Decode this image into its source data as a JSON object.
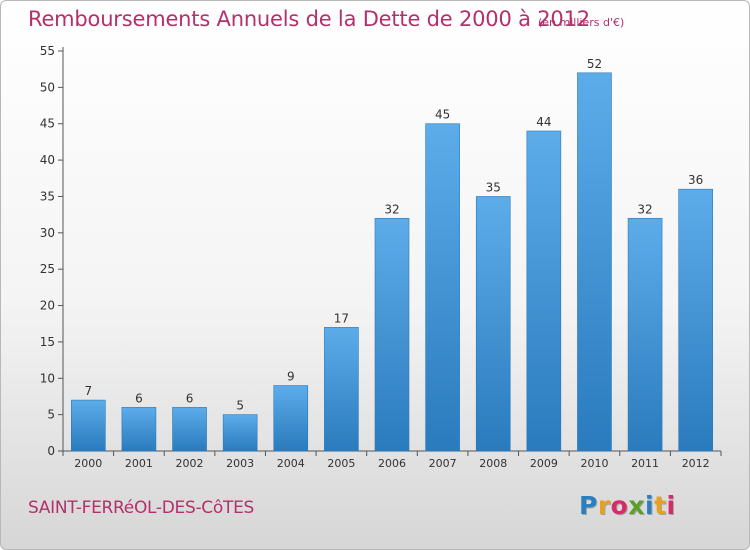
{
  "title": "Remboursements Annuels de la Dette de 2000 à 2012",
  "unit": "(en milliers d'€)",
  "place": "SAINT-FERRéOL-DES-CôTES",
  "logo": {
    "letters": [
      {
        "char": "P",
        "color": "#2a7fc0"
      },
      {
        "char": "r",
        "color": "#e8a020"
      },
      {
        "char": "o",
        "color": "#d62a6a"
      },
      {
        "char": "x",
        "color": "#5aa02c"
      },
      {
        "char": "i",
        "color": "#2a7fc0"
      },
      {
        "char": "t",
        "color": "#e8a020"
      },
      {
        "char": "i",
        "color": "#d62a6a"
      }
    ]
  },
  "colors": {
    "accent": "#b4306c",
    "bar_top": "#5dacea",
    "bar_bottom": "#2a7bbd"
  },
  "chart_data": {
    "type": "bar",
    "title": "Remboursements Annuels de la Dette de 2000 à 2012",
    "ylabel": "",
    "xlabel": "",
    "categories": [
      "2000",
      "2001",
      "2002",
      "2003",
      "2004",
      "2005",
      "2006",
      "2007",
      "2008",
      "2009",
      "2010",
      "2011",
      "2012"
    ],
    "values": [
      7,
      6,
      6,
      5,
      9,
      17,
      32,
      45,
      35,
      44,
      52,
      32,
      36
    ],
    "ylim": [
      0,
      55
    ],
    "yticks": [
      0,
      5,
      10,
      15,
      20,
      25,
      30,
      35,
      40,
      45,
      50,
      55
    ],
    "grid": false,
    "legend": "none"
  }
}
